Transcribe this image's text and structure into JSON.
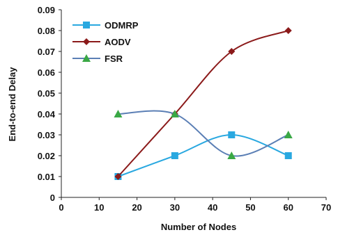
{
  "chart_data": {
    "type": "line",
    "title": "",
    "xlabel": "Number of Nodes",
    "ylabel": "End-to-end Delay",
    "xlim": [
      0,
      70
    ],
    "ylim": [
      0,
      0.09
    ],
    "x_ticks": [
      "0",
      "10",
      "20",
      "30",
      "40",
      "50",
      "60",
      "70"
    ],
    "y_ticks": [
      "0",
      "0.01",
      "0.02",
      "0.03",
      "0.04",
      "0.05",
      "0.06",
      "0.07",
      "0.08",
      "0.09"
    ],
    "grid": false,
    "legend_position": "top-left",
    "x": [
      15,
      30,
      45,
      60
    ],
    "series": [
      {
        "name": "ODMRP",
        "values": [
          0.01,
          0.02,
          0.03,
          0.02
        ],
        "color": "#29a8e0",
        "marker": "square"
      },
      {
        "name": "AODV",
        "values": [
          0.01,
          0.04,
          0.07,
          0.08
        ],
        "color": "#8b1a1a",
        "marker": "diamond"
      },
      {
        "name": "FSR",
        "values": [
          0.04,
          0.04,
          0.02,
          0.03
        ],
        "color": "#5b7fb5",
        "marker": "triangle",
        "marker_color": "#3aa845"
      }
    ]
  }
}
